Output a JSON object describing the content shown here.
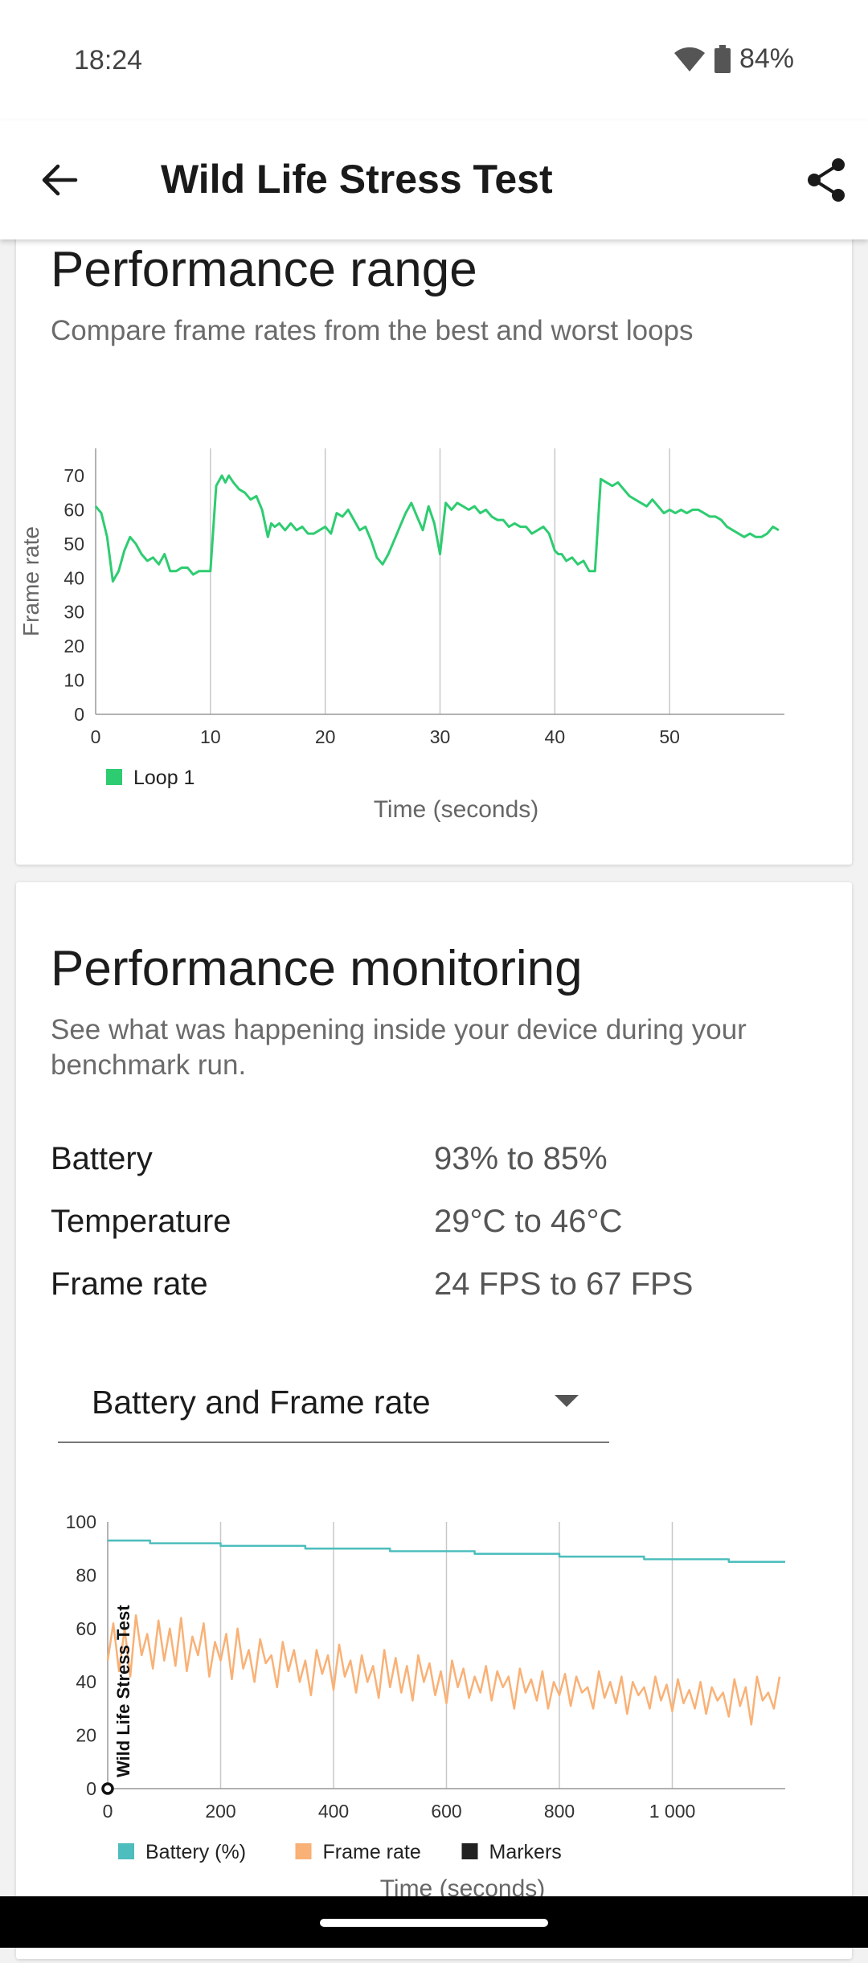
{
  "status": {
    "time": "18:24",
    "battery": "84%"
  },
  "appbar": {
    "title": "Wild Life Stress Test"
  },
  "range": {
    "title": "Performance range",
    "subtitle": "Compare frame rates from the best and worst loops",
    "chart_data": {
      "type": "line",
      "title": "",
      "xlabel": "Time (seconds)",
      "ylabel": "Frame rate",
      "xlim": [
        0,
        60
      ],
      "ylim": [
        0,
        78
      ],
      "xticks": [
        "0",
        "10",
        "20",
        "30",
        "40",
        "50"
      ],
      "yticks": [
        "0",
        "10",
        "20",
        "30",
        "40",
        "50",
        "60",
        "70"
      ],
      "grid": "vertical",
      "legend_position": "bottom-left",
      "series": [
        {
          "name": "Loop 1",
          "color": "#2ecc71",
          "x": [
            0,
            0.5,
            1,
            1.5,
            2,
            2.5,
            3,
            3.5,
            4,
            4.5,
            5,
            5.5,
            6,
            6.5,
            7,
            7.5,
            8,
            8.5,
            9,
            9.5,
            10,
            10.5,
            11,
            11.3,
            11.6,
            12,
            12.5,
            13,
            13.5,
            14,
            14.5,
            15,
            15.3,
            15.6,
            16,
            16.5,
            17,
            17.5,
            18,
            18.5,
            19,
            19.5,
            20,
            20.5,
            21,
            21.5,
            22,
            22.5,
            23,
            23.5,
            24,
            24.5,
            25,
            25.5,
            26,
            26.5,
            27,
            27.5,
            28,
            28.5,
            29,
            29.5,
            30,
            30.5,
            31,
            31.5,
            32,
            32.5,
            33,
            33.5,
            34,
            34.5,
            35,
            35.5,
            36,
            36.5,
            37,
            37.5,
            38,
            38.5,
            39,
            39.5,
            40,
            40.3,
            40.6,
            41,
            41.5,
            42,
            42.5,
            43,
            43.5,
            44,
            44.5,
            45,
            45.5,
            46,
            46.5,
            47,
            47.5,
            48,
            48.5,
            49,
            49.5,
            50,
            50.5,
            51,
            51.5,
            52,
            52.5,
            53,
            53.5,
            54,
            54.5,
            55,
            55.5,
            56,
            56.5,
            57,
            57.5,
            58,
            58.5,
            59,
            59.5
          ],
          "values": [
            61,
            59,
            52,
            39,
            42,
            48,
            52,
            50,
            47,
            45,
            46,
            44,
            47,
            42,
            42,
            43,
            43,
            41,
            42,
            42,
            42,
            67,
            70,
            68,
            70,
            68,
            66,
            65,
            63,
            64,
            60,
            52,
            56,
            55,
            56,
            54,
            56,
            54,
            55,
            53,
            53,
            54,
            55,
            53,
            59,
            58,
            60,
            57,
            54,
            55,
            51,
            46,
            44,
            47,
            51,
            55,
            59,
            62,
            58,
            54,
            61,
            56,
            47,
            62,
            60,
            62,
            61,
            60,
            61,
            59,
            60,
            58,
            57,
            57,
            55,
            56,
            55,
            55,
            53,
            54,
            55,
            53,
            48,
            47,
            47,
            45,
            46,
            44,
            45,
            42,
            42,
            69,
            68,
            67,
            68,
            66,
            64,
            63,
            62,
            61,
            63,
            61,
            59,
            60,
            59,
            60,
            59,
            60,
            60,
            59,
            58,
            58,
            57,
            55,
            54,
            53,
            52,
            53,
            52,
            52,
            53,
            55,
            54
          ]
        }
      ]
    }
  },
  "monitoring": {
    "title": "Performance monitoring",
    "subtitle": "See what was happening inside your device during your benchmark run.",
    "metrics": [
      {
        "label": "Battery",
        "value": "93% to 85%"
      },
      {
        "label": "Temperature",
        "value": "29°C to 46°C"
      },
      {
        "label": "Frame rate",
        "value": "24 FPS to 67 FPS"
      }
    ],
    "dropdown": {
      "selected": "Battery and Frame rate"
    },
    "chart_data": {
      "type": "line",
      "title": "",
      "xlabel": "Time (seconds)",
      "ylabel": "",
      "xlim": [
        0,
        1200
      ],
      "ylim": [
        0,
        100
      ],
      "xticks": [
        "0",
        "200",
        "400",
        "600",
        "800",
        "1 000"
      ],
      "yticks": [
        "0",
        "20",
        "40",
        "60",
        "80",
        "100"
      ],
      "grid": "vertical",
      "legend_position": "bottom-left",
      "marker_label": "Wild Life Stress Test",
      "series": [
        {
          "name": "Battery (%)",
          "color": "#4dbdbd",
          "x": [
            0,
            75,
            75,
            200,
            200,
            350,
            350,
            500,
            500,
            650,
            650,
            800,
            800,
            950,
            950,
            1100,
            1100,
            1200
          ],
          "values": [
            93,
            93,
            92,
            92,
            91,
            91,
            90,
            90,
            89,
            89,
            88,
            88,
            87,
            87,
            86,
            86,
            85,
            85
          ]
        },
        {
          "name": "Frame rate",
          "color": "#f9b176",
          "x": [
            0,
            10,
            20,
            30,
            40,
            50,
            60,
            70,
            80,
            90,
            100,
            110,
            120,
            130,
            140,
            150,
            160,
            170,
            180,
            190,
            200,
            210,
            220,
            230,
            240,
            250,
            260,
            270,
            280,
            290,
            300,
            310,
            320,
            330,
            340,
            350,
            360,
            370,
            380,
            390,
            400,
            410,
            420,
            430,
            440,
            450,
            460,
            470,
            480,
            490,
            500,
            510,
            520,
            530,
            540,
            550,
            560,
            570,
            580,
            590,
            600,
            610,
            620,
            630,
            640,
            650,
            660,
            670,
            680,
            690,
            700,
            710,
            720,
            730,
            740,
            750,
            760,
            770,
            780,
            790,
            800,
            810,
            820,
            830,
            840,
            850,
            860,
            870,
            880,
            890,
            900,
            910,
            920,
            930,
            940,
            950,
            960,
            970,
            980,
            990,
            1000,
            1010,
            1020,
            1030,
            1040,
            1050,
            1060,
            1070,
            1080,
            1090,
            1100,
            1110,
            1120,
            1130,
            1140,
            1150,
            1160,
            1170,
            1180,
            1190
          ],
          "values": [
            48,
            62,
            44,
            60,
            42,
            65,
            50,
            58,
            45,
            63,
            48,
            60,
            46,
            64,
            44,
            57,
            50,
            62,
            42,
            55,
            48,
            58,
            41,
            60,
            45,
            52,
            40,
            56,
            47,
            50,
            38,
            55,
            44,
            52,
            40,
            48,
            35,
            52,
            43,
            50,
            37,
            54,
            42,
            48,
            36,
            50,
            40,
            46,
            34,
            52,
            38,
            49,
            36,
            46,
            33,
            50,
            40,
            47,
            35,
            44,
            32,
            48,
            38,
            45,
            34,
            42,
            36,
            46,
            33,
            44,
            38,
            42,
            30,
            45,
            36,
            41,
            33,
            44,
            30,
            40,
            35,
            43,
            31,
            42,
            36,
            38,
            30,
            44,
            34,
            40,
            32,
            42,
            28,
            40,
            35,
            38,
            30,
            42,
            33,
            39,
            29,
            41,
            32,
            37,
            30,
            40,
            28,
            38,
            33,
            36,
            27,
            41,
            31,
            38,
            24,
            42,
            33,
            36,
            30,
            42
          ]
        },
        {
          "name": "Markers",
          "color": "#222222",
          "x": [
            0
          ],
          "values": [
            0
          ]
        }
      ]
    }
  }
}
